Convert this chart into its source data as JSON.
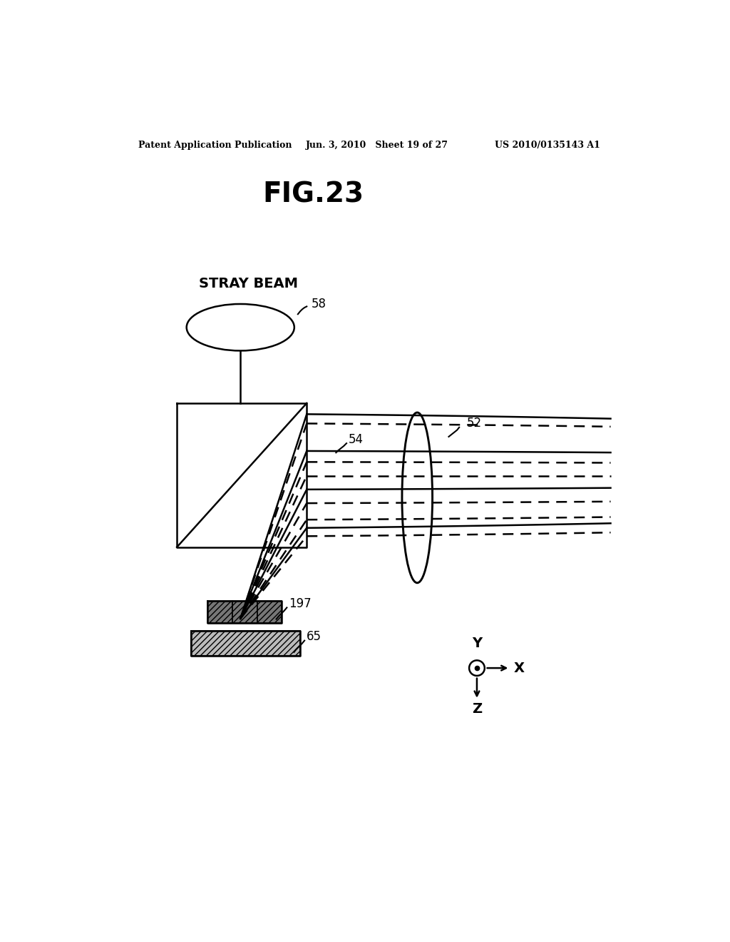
{
  "bg_color": "#ffffff",
  "header_left": "Patent Application Publication",
  "header_mid": "Jun. 3, 2010   Sheet 19 of 27",
  "header_right": "US 2010/0135143 A1",
  "fig_label": "FIG.23",
  "label_stray_beam": "STRAY BEAM",
  "label_58": "58",
  "label_54": "54",
  "label_52": "52",
  "label_197": "197",
  "label_65": "65",
  "line_color": "#000000"
}
